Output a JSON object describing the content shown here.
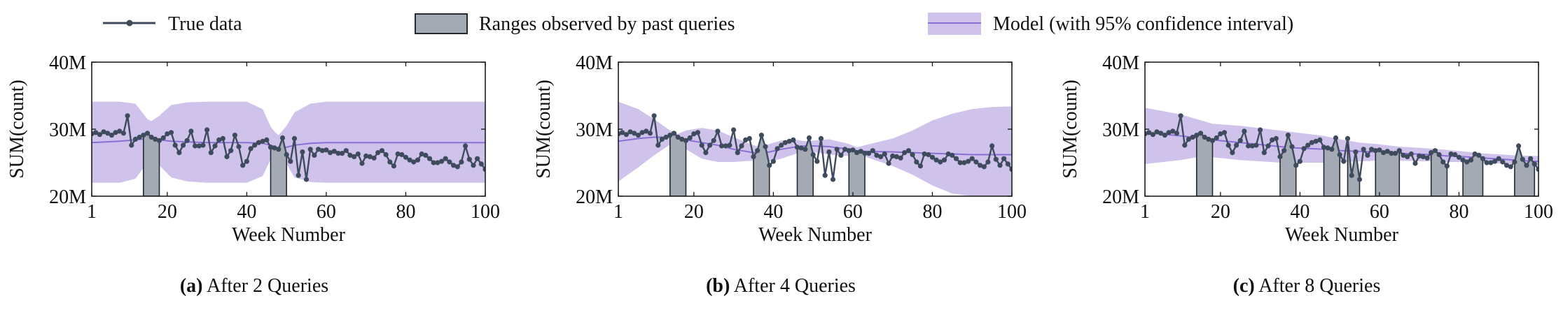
{
  "legend": {
    "true_data": "True data",
    "ranges": "Ranges observed by past queries",
    "model": "Model (with 95% confidence interval)"
  },
  "colors": {
    "true_data": "#3d4b5c",
    "range_fill": "#a3aab3",
    "range_stroke": "#222a33",
    "model_line": "#8a70d6",
    "ci_fill": "#cfc3ec",
    "axis": "#111111"
  },
  "chart_data": [
    {
      "type": "line",
      "caption_letter": "(a)",
      "caption_text": "After 2 Queries",
      "xlabel": "Week Number",
      "ylabel": "SUM(count)",
      "xlim": [
        1,
        100
      ],
      "ylim": [
        20000000,
        40000000
      ],
      "x_ticks": [
        1,
        20,
        40,
        60,
        80,
        100
      ],
      "y_ticks": [
        {
          "v": 20000000,
          "label": "20M"
        },
        {
          "v": 30000000,
          "label": "30M"
        },
        {
          "v": 40000000,
          "label": "40M"
        }
      ],
      "ranges": [
        [
          14,
          18
        ],
        [
          46,
          50
        ]
      ],
      "model": {
        "x": [
          1,
          8,
          12,
          15,
          16,
          18,
          21,
          25,
          30,
          40,
          44,
          46,
          47,
          48,
          50,
          52,
          56,
          60,
          70,
          80,
          90,
          100
        ],
        "mean": [
          28.0,
          28.2,
          28.4,
          28.6,
          28.5,
          28.4,
          28.2,
          28.1,
          28.0,
          28.0,
          27.9,
          27.6,
          27.4,
          27.2,
          27.3,
          27.6,
          27.9,
          28.0,
          28.0,
          28.0,
          28.0,
          28.0
        ],
        "upper": [
          34.1,
          34.1,
          33.8,
          31.5,
          31.2,
          32.0,
          33.6,
          34.0,
          34.1,
          34.1,
          33.0,
          30.4,
          29.6,
          29.1,
          30.5,
          32.5,
          33.8,
          34.1,
          34.1,
          34.1,
          34.1,
          34.1
        ],
        "lower": [
          22.0,
          22.0,
          22.6,
          25.0,
          25.4,
          24.6,
          22.8,
          22.2,
          22.0,
          22.0,
          23.0,
          25.5,
          26.0,
          26.3,
          24.8,
          22.8,
          22.1,
          22.0,
          22.0,
          22.0,
          22.0,
          22.0
        ]
      }
    },
    {
      "type": "line",
      "caption_letter": "(b)",
      "caption_text": "After 4 Queries",
      "xlabel": "Week Number",
      "ylabel": "SUM(count)",
      "xlim": [
        1,
        100
      ],
      "ylim": [
        20000000,
        40000000
      ],
      "x_ticks": [
        1,
        20,
        40,
        60,
        80,
        100
      ],
      "y_ticks": [
        {
          "v": 20000000,
          "label": "20M"
        },
        {
          "v": 30000000,
          "label": "30M"
        },
        {
          "v": 40000000,
          "label": "40M"
        }
      ],
      "ranges": [
        [
          14,
          18
        ],
        [
          35,
          39
        ],
        [
          46,
          50
        ],
        [
          59,
          63
        ]
      ],
      "model": {
        "x": [
          1,
          6,
          10,
          14,
          16,
          18,
          22,
          26,
          30,
          35,
          37,
          39,
          42,
          46,
          48,
          50,
          54,
          59,
          61,
          63,
          70,
          75,
          80,
          85,
          90,
          95,
          100
        ],
        "mean": [
          28.2,
          28.6,
          28.8,
          28.8,
          28.6,
          28.4,
          28.0,
          27.6,
          27.0,
          26.5,
          26.4,
          26.6,
          27.0,
          27.4,
          27.5,
          27.5,
          27.4,
          27.0,
          26.8,
          26.7,
          26.6,
          26.5,
          26.4,
          26.3,
          26.2,
          26.2,
          26.2
        ],
        "upper": [
          34.1,
          33.0,
          31.5,
          29.8,
          29.3,
          29.8,
          30.2,
          29.8,
          28.8,
          27.6,
          27.3,
          27.8,
          28.3,
          28.4,
          28.2,
          28.3,
          28.5,
          27.8,
          27.3,
          27.6,
          28.6,
          29.8,
          31.3,
          32.3,
          33.0,
          33.3,
          33.4
        ],
        "lower": [
          22.2,
          24.3,
          26.1,
          27.7,
          27.9,
          27.0,
          25.6,
          25.1,
          25.1,
          25.3,
          25.5,
          25.2,
          25.6,
          26.4,
          26.8,
          26.6,
          26.2,
          26.0,
          26.3,
          25.9,
          24.5,
          23.2,
          21.6,
          20.4,
          20.0,
          20.0,
          20.0
        ]
      }
    },
    {
      "type": "line",
      "caption_letter": "(c)",
      "caption_text": "After 8 Queries",
      "xlabel": "Week Number",
      "ylabel": "SUM(count)",
      "xlim": [
        1,
        100
      ],
      "ylim": [
        20000000,
        40000000
      ],
      "x_ticks": [
        1,
        20,
        40,
        60,
        80,
        100
      ],
      "y_ticks": [
        {
          "v": 20000000,
          "label": "20M"
        },
        {
          "v": 30000000,
          "label": "30M"
        },
        {
          "v": 40000000,
          "label": "40M"
        }
      ],
      "ranges": [
        [
          14,
          18
        ],
        [
          35,
          39
        ],
        [
          46,
          50
        ],
        [
          52,
          55
        ],
        [
          59,
          65
        ],
        [
          73,
          77
        ],
        [
          81,
          86
        ],
        [
          94,
          99
        ]
      ],
      "model": {
        "x": [
          1,
          10,
          14,
          18,
          25,
          35,
          39,
          46,
          50,
          55,
          59,
          65,
          73,
          77,
          81,
          86,
          94,
          99,
          100
        ],
        "mean": [
          29.5,
          29.0,
          28.7,
          28.4,
          28.0,
          27.4,
          27.2,
          27.0,
          26.8,
          26.7,
          26.6,
          26.4,
          26.2,
          26.0,
          25.9,
          25.7,
          25.4,
          25.2,
          25.2
        ],
        "upper": [
          33.2,
          32.2,
          31.5,
          30.8,
          30.5,
          29.8,
          29.5,
          29.0,
          28.5,
          28.0,
          27.8,
          27.4,
          27.1,
          26.9,
          26.7,
          26.4,
          26.1,
          26.0,
          26.0
        ],
        "lower": [
          24.8,
          25.4,
          25.8,
          25.8,
          25.4,
          25.0,
          25.0,
          25.0,
          25.1,
          25.2,
          25.3,
          25.3,
          25.2,
          25.1,
          25.1,
          25.0,
          24.8,
          24.6,
          24.6
        ]
      }
    }
  ],
  "true_series": {
    "x": [
      1,
      2,
      3,
      4,
      5,
      6,
      7,
      8,
      9,
      10,
      11,
      12,
      13,
      14,
      15,
      16,
      17,
      18,
      19,
      20,
      21,
      22,
      23,
      24,
      25,
      26,
      27,
      28,
      29,
      30,
      31,
      32,
      33,
      34,
      35,
      36,
      37,
      38,
      39,
      40,
      41,
      42,
      43,
      44,
      45,
      46,
      47,
      48,
      49,
      50,
      51,
      52,
      53,
      54,
      55,
      56,
      57,
      58,
      59,
      60,
      61,
      62,
      63,
      64,
      65,
      66,
      67,
      68,
      69,
      70,
      71,
      72,
      73,
      74,
      75,
      76,
      77,
      78,
      79,
      80,
      81,
      82,
      83,
      84,
      85,
      86,
      87,
      88,
      89,
      90,
      91,
      92,
      93,
      94,
      95,
      96,
      97,
      98,
      99,
      100
    ],
    "y": [
      29.3,
      29.5,
      29.2,
      29.6,
      29.4,
      29.1,
      29.5,
      29.7,
      29.4,
      32.0,
      27.6,
      28.5,
      28.8,
      29.1,
      29.4,
      28.8,
      28.5,
      28.3,
      28.7,
      29.3,
      29.5,
      27.6,
      26.5,
      27.6,
      28.3,
      29.7,
      27.5,
      27.5,
      27.6,
      29.9,
      26.5,
      27.5,
      28.4,
      28.6,
      25.9,
      26.8,
      29.1,
      27.4,
      24.6,
      25.2,
      27.1,
      27.6,
      28.0,
      28.2,
      28.4,
      27.3,
      27.2,
      27.0,
      28.7,
      26.2,
      25.2,
      28.6,
      23.1,
      26.6,
      22.5,
      27.0,
      26.1,
      27.0,
      26.8,
      26.9,
      26.5,
      26.7,
      26.4,
      26.4,
      26.8,
      26.1,
      25.9,
      26.3,
      24.9,
      26.0,
      25.9,
      25.7,
      26.5,
      26.8,
      26.2,
      25.1,
      24.5,
      26.3,
      26.2,
      25.8,
      25.4,
      25.1,
      25.4,
      26.3,
      26.1,
      25.6,
      25.0,
      25.0,
      25.2,
      25.6,
      25.1,
      24.6,
      24.4,
      25.1,
      27.5,
      25.5,
      24.6,
      25.6,
      24.8,
      24.0
    ]
  }
}
